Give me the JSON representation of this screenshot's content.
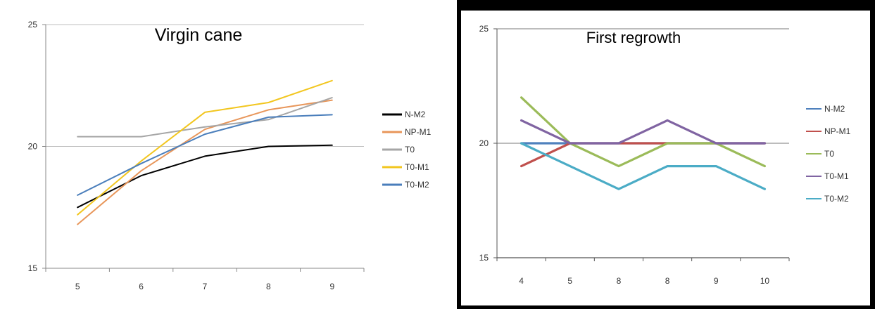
{
  "chart_data": [
    {
      "type": "line",
      "title": "Virgin cane",
      "categories": [
        "5",
        "6",
        "7",
        "8",
        "9"
      ],
      "ylim": [
        15,
        25
      ],
      "yticks": [
        "15",
        "20",
        "25"
      ],
      "grid": true,
      "legend_position": "right",
      "series": [
        {
          "name": "N-M2",
          "color": "#000000",
          "values": [
            17.5,
            18.8,
            19.6,
            20.0,
            20.05
          ]
        },
        {
          "name": "NP-M1",
          "color": "#E8965A",
          "values": [
            16.8,
            19.0,
            20.7,
            21.5,
            21.9
          ]
        },
        {
          "name": "T0",
          "color": "#A6A6A6",
          "values": [
            20.4,
            20.4,
            20.8,
            21.1,
            22.0
          ]
        },
        {
          "name": "T0-M1",
          "color": "#F2C61F",
          "values": [
            17.2,
            19.4,
            21.4,
            21.8,
            22.7
          ]
        },
        {
          "name": "T0-M2",
          "color": "#4A7EBB",
          "values": [
            18.0,
            19.3,
            20.5,
            21.2,
            21.3
          ]
        }
      ]
    },
    {
      "type": "line",
      "title": "First regrowth",
      "categories": [
        "4",
        "5",
        "8",
        "8",
        "9",
        "10"
      ],
      "ylim": [
        15,
        25
      ],
      "yticks": [
        "15",
        "20",
        "25"
      ],
      "grid": true,
      "legend_position": "right",
      "series": [
        {
          "name": "N-M2",
          "color": "#4F81BD",
          "values": [
            20,
            20,
            20,
            20,
            20,
            20
          ]
        },
        {
          "name": "NP-M1",
          "color": "#C0504D",
          "values": [
            19,
            20,
            20,
            20,
            20,
            20
          ]
        },
        {
          "name": "T0",
          "color": "#9BBB59",
          "values": [
            22,
            20,
            19,
            20,
            20,
            19
          ]
        },
        {
          "name": "T0-M1",
          "color": "#8064A2",
          "values": [
            21,
            20,
            20,
            21,
            20,
            20
          ]
        },
        {
          "name": "T0-M2",
          "color": "#4BACC6",
          "values": [
            20,
            19,
            18,
            19,
            19,
            18
          ]
        }
      ]
    }
  ]
}
